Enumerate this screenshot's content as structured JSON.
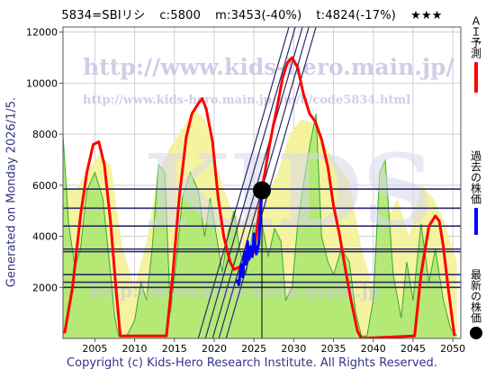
{
  "header": {
    "code_name": "5834=SBIリシ",
    "current": "c:5800",
    "min": "m:3453(-40%)",
    "target": "t:4824(-17%)",
    "rating": "★★★"
  },
  "side_note": "Generated on Monday 2026/1/5.",
  "footer": "Copyright (c) Kids-Hero Research Institute. All Rights Reserved.",
  "watermarks": {
    "url": "http://www.kids-hero.main.jp/",
    "page": "http://www.kids-hero.main.jp/am/b/code5834.html",
    "logo": "KIDS",
    "bottom": "http://www.kids-hero.main.jp"
  },
  "legend": {
    "ai": "ＡＩ予測",
    "past": "過去の株価",
    "latest": "最新の株価"
  },
  "colors": {
    "ai": "#ff0000",
    "past": "#0000ff",
    "latest": "#000000",
    "yellow_fill": "#f5f2a0",
    "green_fill": "#aee870",
    "green_line": "#33aa33",
    "levels": "#2a2a6a",
    "channel": "#2a2a6a"
  },
  "chart_data": {
    "type": "line",
    "x_range": [
      2001,
      2051
    ],
    "y_range": [
      0,
      12200
    ],
    "x_ticks": [
      2005,
      2010,
      2015,
      2020,
      2025,
      2030,
      2035,
      2040,
      2045,
      2050
    ],
    "y_ticks": [
      2000,
      4000,
      6000,
      8000,
      10000,
      12000
    ],
    "grid": true,
    "latest_point": {
      "x": 2026.0,
      "y": 5800
    },
    "current_year": 2026.0,
    "horizontal_levels": [
      5850,
      5100,
      4400,
      3500,
      3400,
      2500,
      2200,
      2000
    ],
    "channel_lines": [
      {
        "x": [
          2018.0,
          2029.4
        ],
        "y": [
          0,
          12200
        ]
      },
      {
        "x": [
          2018.9,
          2030.2
        ],
        "y": [
          0,
          12200
        ]
      },
      {
        "x": [
          2019.8,
          2031.1
        ],
        "y": [
          0,
          12200
        ]
      },
      {
        "x": [
          2020.6,
          2031.9
        ],
        "y": [
          0,
          12200
        ]
      },
      {
        "x": [
          2021.5,
          2032.8
        ],
        "y": [
          0,
          12200
        ]
      }
    ],
    "series": [
      {
        "name": "ＡＩ予測",
        "role": "ai",
        "x": [
          2001.2,
          2002.2,
          2003.2,
          2004.0,
          2004.8,
          2005.5,
          2006.2,
          2007.0,
          2007.6,
          2008.2,
          2014.0,
          2014.8,
          2015.6,
          2016.5,
          2017.2,
          2018.0,
          2018.5,
          2019.0,
          2019.8,
          2020.5,
          2021.2,
          2022.0,
          2022.5,
          2023.2,
          2024.0,
          2025.0,
          2026.0,
          2026.8,
          2027.4,
          2028.0,
          2028.6,
          2029.2,
          2029.8,
          2030.5,
          2031.2,
          2032.0,
          2032.7,
          2033.5,
          2034.3,
          2035.0,
          2035.8,
          2036.5,
          2037.2,
          2038.0,
          2038.5,
          2045.2,
          2046.0,
          2047.0,
          2047.8,
          2048.3,
          2048.8,
          2049.4,
          2050.2
        ],
        "y": [
          200,
          2000,
          4800,
          6500,
          7600,
          7700,
          6800,
          4500,
          2200,
          100,
          100,
          2500,
          5500,
          7900,
          8800,
          9200,
          9400,
          9000,
          7700,
          5500,
          4000,
          3000,
          2700,
          2800,
          3000,
          3400,
          5800,
          7300,
          8300,
          9200,
          10200,
          10800,
          11000,
          10600,
          9600,
          8800,
          8500,
          7800,
          6700,
          5200,
          4000,
          2700,
          1500,
          300,
          0,
          100,
          2500,
          4400,
          4800,
          4600,
          3600,
          2000,
          100
        ]
      },
      {
        "name": "過去の株価",
        "role": "past",
        "x": [
          2022.8,
          2023.1,
          2023.4,
          2023.6,
          2023.8,
          2024.0,
          2024.2,
          2024.4,
          2024.6,
          2024.8,
          2025.0,
          2025.3,
          2025.6,
          2025.85,
          2026.0
        ],
        "y": [
          2300,
          2100,
          2900,
          2400,
          3400,
          2900,
          3800,
          3100,
          3600,
          3200,
          4100,
          3300,
          3700,
          5000,
          5800
        ]
      },
      {
        "role": "yellow_fill",
        "x": [
          2001.0,
          2002.5,
          2004.0,
          2005.5,
          2007.0,
          2008.5,
          2010.0,
          2011.5,
          2013.0,
          2014.5,
          2016.0,
          2017.5,
          2019.0,
          2020.5,
          2022.0,
          2023.5,
          2025.0,
          2026.5,
          2028.0,
          2029.5,
          2031.0,
          2032.5,
          2034.0,
          2035.5,
          2037.0,
          2038.5,
          2040.0,
          2041.5,
          2043.0,
          2044.5,
          2046.0,
          2047.5,
          2049.0,
          2050.5
        ],
        "y": [
          6000,
          5800,
          6500,
          7200,
          6800,
          3500,
          2000,
          3800,
          6500,
          7500,
          8200,
          9000,
          8500,
          6500,
          5200,
          4500,
          5000,
          5500,
          6500,
          8000,
          8600,
          8400,
          7500,
          6800,
          6200,
          3500,
          2000,
          4500,
          5500,
          4000,
          6000,
          5500,
          4500,
          3000
        ]
      },
      {
        "role": "green_fill",
        "x": [
          2001.0,
          2001.7,
          2002.5,
          2003.2,
          2004.0,
          2005.0,
          2006.0,
          2007.0,
          2007.5,
          2008.0,
          2009.0,
          2010.0,
          2010.8,
          2011.5,
          2012.2,
          2013.0,
          2013.8,
          2014.5,
          2015.3,
          2016.0,
          2017.0,
          2018.0,
          2018.8,
          2019.5,
          2020.3,
          2021.0,
          2021.8,
          2022.5,
          2023.2,
          2024.0,
          2025.0,
          2026.0,
          2026.8,
          2027.6,
          2028.4,
          2029.0,
          2029.8,
          2030.5,
          2031.2,
          2032.0,
          2032.8,
          2033.5,
          2034.3,
          2035.0,
          2036.0,
          2037.0,
          2037.8,
          2038.5,
          2039.2,
          2040.0,
          2040.8,
          2041.5,
          2042.5,
          2043.5,
          2044.2,
          2045.0,
          2046.0,
          2047.0,
          2047.8,
          2048.8,
          2049.7,
          2050.5
        ],
        "y": [
          8000,
          4500,
          2800,
          3500,
          5800,
          6500,
          5500,
          2500,
          800,
          100,
          100,
          700,
          2200,
          1500,
          3500,
          6800,
          6500,
          1000,
          3200,
          5500,
          6500,
          5800,
          4000,
          5500,
          4000,
          2600,
          4200,
          5000,
          3500,
          2500,
          4500,
          4500,
          3200,
          4300,
          3800,
          1500,
          2000,
          4500,
          6000,
          7500,
          8800,
          4000,
          3000,
          2500,
          3500,
          3000,
          1000,
          100,
          100,
          1500,
          6500,
          7000,
          2500,
          800,
          3000,
          1500,
          4500,
          2200,
          3500,
          1500,
          400,
          100
        ]
      }
    ]
  }
}
